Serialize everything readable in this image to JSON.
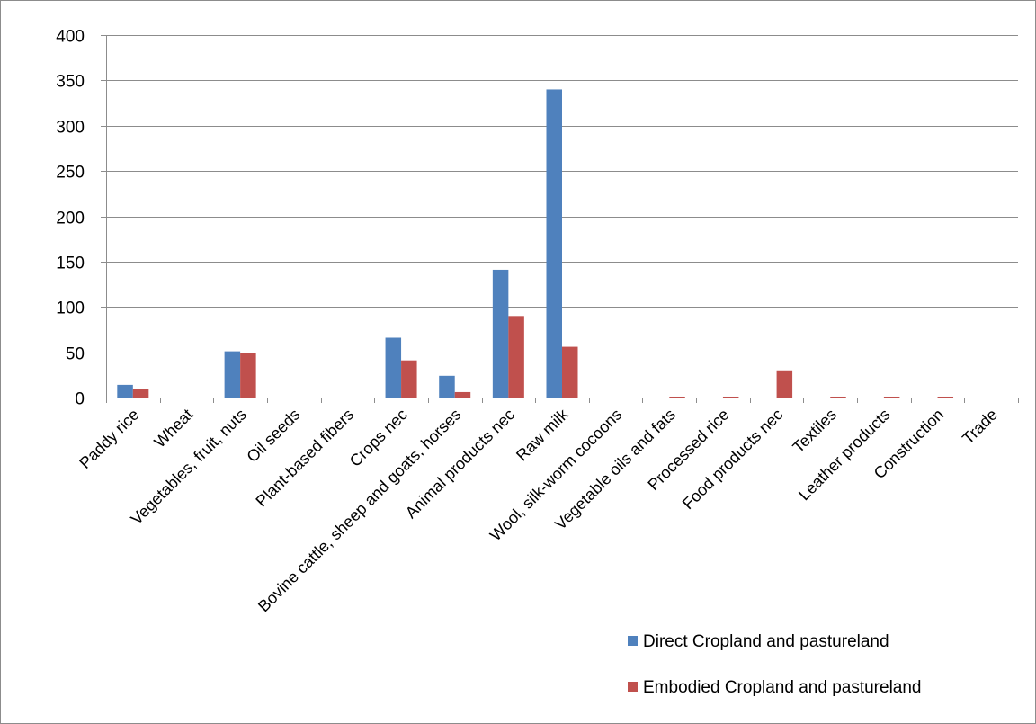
{
  "chart_data": {
    "type": "bar",
    "title": "",
    "xlabel": "",
    "ylabel": "",
    "ylim": [
      0,
      400
    ],
    "yticks": [
      0,
      50,
      100,
      150,
      200,
      250,
      300,
      350,
      400
    ],
    "grid": true,
    "legend_position": "bottom-right",
    "categories": [
      "Paddy rice",
      "Wheat",
      "Vegetables, fruit, nuts",
      "Oil seeds",
      "Plant-based fibers",
      "Crops nec",
      "Bovine cattle, sheep and goats, horses",
      "Animal products nec",
      "Raw milk",
      "Wool, silk-worm cocoons",
      "Vegetable oils and fats",
      "Processed rice",
      "Food products nec",
      "Textiles",
      "Leather products",
      "Construction",
      "Trade"
    ],
    "series": [
      {
        "name": "Direct Cropland and pastureland",
        "color": "#4f81bd",
        "values": [
          14,
          0,
          51,
          0,
          0,
          66,
          24,
          141,
          340,
          0,
          0,
          0,
          0,
          0,
          0,
          0,
          0
        ]
      },
      {
        "name": "Embodied Cropland and pastureland",
        "color": "#c0504d",
        "values": [
          9,
          0,
          49,
          0,
          0,
          41,
          6,
          90,
          56,
          0,
          1,
          1,
          30,
          1,
          1,
          1,
          0
        ]
      }
    ]
  }
}
